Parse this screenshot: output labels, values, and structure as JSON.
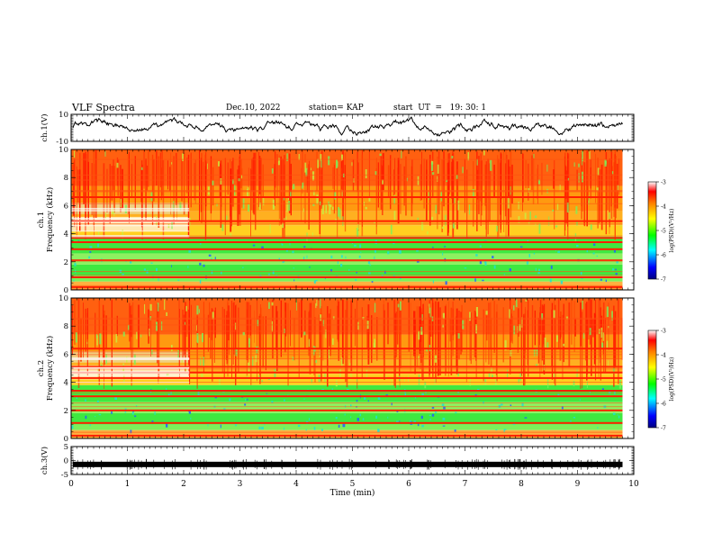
{
  "header": {
    "title": "VLF Spectra",
    "date": "Dec.10, 2022",
    "station": "station= KAP",
    "start": "start  UT  =   19: 30: 1"
  },
  "chart_data": [
    {
      "type": "line",
      "panel": "ch1-waveform",
      "ylabel": "ch.1(V)",
      "ylim": [
        -10,
        10
      ],
      "yticks": [
        "10",
        "-10"
      ],
      "xlim": [
        0,
        9.8
      ],
      "description_values": {
        "baseline": 0,
        "typical_min": -6,
        "typical_max": 8
      },
      "series": [
        {
          "color": "#000000"
        }
      ]
    },
    {
      "type": "heatmap",
      "panel": "ch1-spectrogram",
      "ylabel": "ch.1\nFrequency (kHz)",
      "ylim": [
        0,
        10
      ],
      "yticks": [
        "0",
        "2",
        "4",
        "6",
        "8",
        "10"
      ],
      "xlim": [
        0,
        9.8
      ],
      "colorbar": {
        "label": "log(PSD)(V²/Hz)",
        "range": [
          -7,
          -3
        ],
        "ticks": [
          "-3",
          "-4",
          "-5",
          "-6",
          "-7"
        ]
      },
      "bands_khz": [
        0.2,
        0.9,
        2.1,
        2.9,
        3.4,
        3.7,
        4.9,
        6.6
      ],
      "transition_minute": 2.1
    },
    {
      "type": "heatmap",
      "panel": "ch2-spectrogram",
      "ylabel": "ch.2\nFrequency (kHz)",
      "ylim": [
        0,
        10
      ],
      "yticks": [
        "0",
        "2",
        "4",
        "6",
        "8",
        "10"
      ],
      "xlim": [
        0,
        9.8
      ],
      "colorbar": {
        "label": "log(PSD)(V²/Hz)",
        "range": [
          -7,
          -3
        ],
        "ticks": [
          "-3",
          "-4",
          "-5",
          "-6",
          "-7"
        ]
      },
      "bands_khz": [
        0.2,
        1.1,
        2.0,
        3.0,
        3.4,
        4.3,
        4.7,
        5.1,
        6.4
      ],
      "transition_minute": 2.1
    },
    {
      "type": "line",
      "panel": "ch3-waveform",
      "ylabel": "ch.3(V)",
      "ylim": [
        -5,
        5
      ],
      "yticks": [
        "5",
        "0",
        "-5"
      ],
      "xlim": [
        0,
        9.8
      ],
      "level": -1.4,
      "series": [
        {
          "color": "#000000"
        }
      ]
    }
  ],
  "xaxis": {
    "label": "Time (min)",
    "ticks": [
      "0",
      "1",
      "2",
      "3",
      "4",
      "5",
      "6",
      "7",
      "8",
      "9",
      "10"
    ],
    "range": [
      0,
      10
    ]
  },
  "colors": {
    "palette": [
      "#00007f",
      "#0000ff",
      "#00ffff",
      "#00ff00",
      "#ffff00",
      "#ff8000",
      "#ff0000",
      "#ffffff"
    ]
  }
}
